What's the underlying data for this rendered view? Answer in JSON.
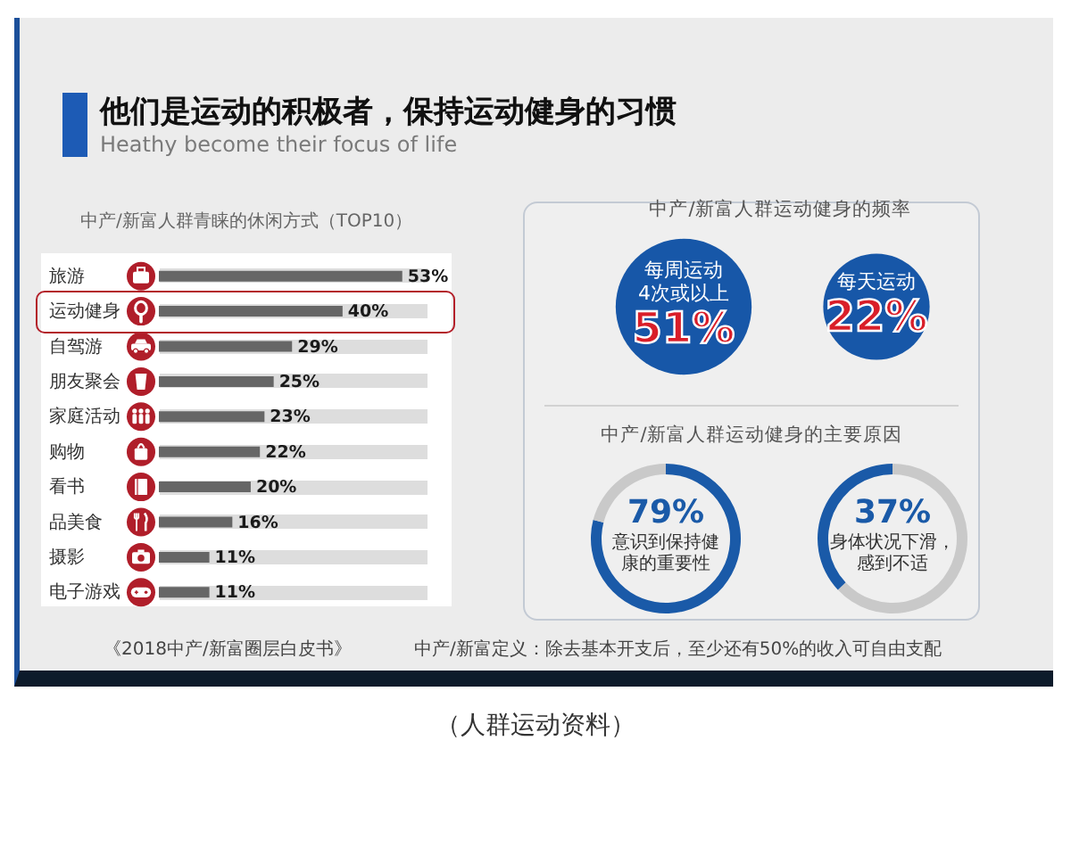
{
  "chart_data": [
    {
      "type": "other",
      "title": "他们是运动的积极者，保持运动健身的习惯",
      "subtitle": "Heathy become their focus of life",
      "annotations": [
        "《2018中产/新富圈层白皮书》",
        "中产/新富定义：除去基本开支后，至少还有50%的收入可自由支配",
        "（人群运动资料）"
      ]
    },
    {
      "type": "bar",
      "orientation": "horizontal",
      "title": "中产/新富人群青睐的休闲方式（TOP10）",
      "categories": [
        "旅游",
        "运动健身",
        "自驾游",
        "朋友聚会",
        "家庭活动",
        "购物",
        "看书",
        "品美食",
        "摄影",
        "电子游戏"
      ],
      "values": [
        53,
        40,
        29,
        25,
        23,
        22,
        20,
        16,
        11,
        11
      ],
      "value_labels": [
        "53%",
        "40%",
        "29%",
        "25%",
        "23%",
        "22%",
        "20%",
        "16%",
        "11%",
        "11%"
      ],
      "color": "#666666",
      "grid": "y"
    },
    {
      "type": "other",
      "title": "中产/新富人群运动健身的频率",
      "categories": [
        "每周运动4次或以上",
        "每天运动"
      ],
      "values": [
        51,
        22
      ],
      "value_labels": [
        "51%",
        "22%"
      ],
      "color": "#1757a8"
    },
    {
      "type": "donut",
      "title": "中产/新富人群运动健身的主要原因",
      "categories": [
        "意识到保持健康的重要性",
        null
      ],
      "values": [
        79,
        21
      ],
      "colors": [
        "#1a5aa8",
        "#c9c9c9"
      ],
      "value_labels": [
        "79%",
        null
      ]
    },
    {
      "type": "donut",
      "categories": [
        null,
        "身体状况下滑，感到不适"
      ],
      "values": [
        63,
        37
      ],
      "colors": [
        "#c9c9c9",
        "#1a5aa8"
      ],
      "value_labels": [
        null,
        "37%"
      ]
    }
  ]
}
